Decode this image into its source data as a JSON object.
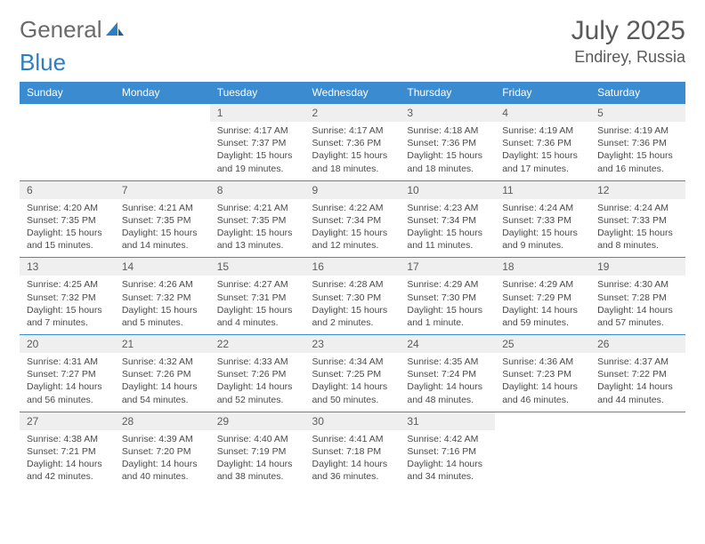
{
  "brand": {
    "part1": "General",
    "part2": "Blue"
  },
  "header": {
    "month_year": "July 2025",
    "location": "Endirey, Russia"
  },
  "colors": {
    "header_bg": "#3b8bd0",
    "header_text": "#ffffff",
    "daynum_bg": "#efefef",
    "border": "#3b8bd0",
    "text": "#4a4a4a",
    "brand_gray": "#6a6a6a",
    "brand_blue": "#2b7fc3"
  },
  "day_names": [
    "Sunday",
    "Monday",
    "Tuesday",
    "Wednesday",
    "Thursday",
    "Friday",
    "Saturday"
  ],
  "weeks": [
    {
      "nums": [
        "",
        "",
        "1",
        "2",
        "3",
        "4",
        "5"
      ],
      "cells": [
        null,
        null,
        {
          "sunrise": "Sunrise: 4:17 AM",
          "sunset": "Sunset: 7:37 PM",
          "day1": "Daylight: 15 hours",
          "day2": "and 19 minutes."
        },
        {
          "sunrise": "Sunrise: 4:17 AM",
          "sunset": "Sunset: 7:36 PM",
          "day1": "Daylight: 15 hours",
          "day2": "and 18 minutes."
        },
        {
          "sunrise": "Sunrise: 4:18 AM",
          "sunset": "Sunset: 7:36 PM",
          "day1": "Daylight: 15 hours",
          "day2": "and 18 minutes."
        },
        {
          "sunrise": "Sunrise: 4:19 AM",
          "sunset": "Sunset: 7:36 PM",
          "day1": "Daylight: 15 hours",
          "day2": "and 17 minutes."
        },
        {
          "sunrise": "Sunrise: 4:19 AM",
          "sunset": "Sunset: 7:36 PM",
          "day1": "Daylight: 15 hours",
          "day2": "and 16 minutes."
        }
      ]
    },
    {
      "nums": [
        "6",
        "7",
        "8",
        "9",
        "10",
        "11",
        "12"
      ],
      "cells": [
        {
          "sunrise": "Sunrise: 4:20 AM",
          "sunset": "Sunset: 7:35 PM",
          "day1": "Daylight: 15 hours",
          "day2": "and 15 minutes."
        },
        {
          "sunrise": "Sunrise: 4:21 AM",
          "sunset": "Sunset: 7:35 PM",
          "day1": "Daylight: 15 hours",
          "day2": "and 14 minutes."
        },
        {
          "sunrise": "Sunrise: 4:21 AM",
          "sunset": "Sunset: 7:35 PM",
          "day1": "Daylight: 15 hours",
          "day2": "and 13 minutes."
        },
        {
          "sunrise": "Sunrise: 4:22 AM",
          "sunset": "Sunset: 7:34 PM",
          "day1": "Daylight: 15 hours",
          "day2": "and 12 minutes."
        },
        {
          "sunrise": "Sunrise: 4:23 AM",
          "sunset": "Sunset: 7:34 PM",
          "day1": "Daylight: 15 hours",
          "day2": "and 11 minutes."
        },
        {
          "sunrise": "Sunrise: 4:24 AM",
          "sunset": "Sunset: 7:33 PM",
          "day1": "Daylight: 15 hours",
          "day2": "and 9 minutes."
        },
        {
          "sunrise": "Sunrise: 4:24 AM",
          "sunset": "Sunset: 7:33 PM",
          "day1": "Daylight: 15 hours",
          "day2": "and 8 minutes."
        }
      ]
    },
    {
      "nums": [
        "13",
        "14",
        "15",
        "16",
        "17",
        "18",
        "19"
      ],
      "cells": [
        {
          "sunrise": "Sunrise: 4:25 AM",
          "sunset": "Sunset: 7:32 PM",
          "day1": "Daylight: 15 hours",
          "day2": "and 7 minutes."
        },
        {
          "sunrise": "Sunrise: 4:26 AM",
          "sunset": "Sunset: 7:32 PM",
          "day1": "Daylight: 15 hours",
          "day2": "and 5 minutes."
        },
        {
          "sunrise": "Sunrise: 4:27 AM",
          "sunset": "Sunset: 7:31 PM",
          "day1": "Daylight: 15 hours",
          "day2": "and 4 minutes."
        },
        {
          "sunrise": "Sunrise: 4:28 AM",
          "sunset": "Sunset: 7:30 PM",
          "day1": "Daylight: 15 hours",
          "day2": "and 2 minutes."
        },
        {
          "sunrise": "Sunrise: 4:29 AM",
          "sunset": "Sunset: 7:30 PM",
          "day1": "Daylight: 15 hours",
          "day2": "and 1 minute."
        },
        {
          "sunrise": "Sunrise: 4:29 AM",
          "sunset": "Sunset: 7:29 PM",
          "day1": "Daylight: 14 hours",
          "day2": "and 59 minutes."
        },
        {
          "sunrise": "Sunrise: 4:30 AM",
          "sunset": "Sunset: 7:28 PM",
          "day1": "Daylight: 14 hours",
          "day2": "and 57 minutes."
        }
      ]
    },
    {
      "nums": [
        "20",
        "21",
        "22",
        "23",
        "24",
        "25",
        "26"
      ],
      "cells": [
        {
          "sunrise": "Sunrise: 4:31 AM",
          "sunset": "Sunset: 7:27 PM",
          "day1": "Daylight: 14 hours",
          "day2": "and 56 minutes."
        },
        {
          "sunrise": "Sunrise: 4:32 AM",
          "sunset": "Sunset: 7:26 PM",
          "day1": "Daylight: 14 hours",
          "day2": "and 54 minutes."
        },
        {
          "sunrise": "Sunrise: 4:33 AM",
          "sunset": "Sunset: 7:26 PM",
          "day1": "Daylight: 14 hours",
          "day2": "and 52 minutes."
        },
        {
          "sunrise": "Sunrise: 4:34 AM",
          "sunset": "Sunset: 7:25 PM",
          "day1": "Daylight: 14 hours",
          "day2": "and 50 minutes."
        },
        {
          "sunrise": "Sunrise: 4:35 AM",
          "sunset": "Sunset: 7:24 PM",
          "day1": "Daylight: 14 hours",
          "day2": "and 48 minutes."
        },
        {
          "sunrise": "Sunrise: 4:36 AM",
          "sunset": "Sunset: 7:23 PM",
          "day1": "Daylight: 14 hours",
          "day2": "and 46 minutes."
        },
        {
          "sunrise": "Sunrise: 4:37 AM",
          "sunset": "Sunset: 7:22 PM",
          "day1": "Daylight: 14 hours",
          "day2": "and 44 minutes."
        }
      ]
    },
    {
      "nums": [
        "27",
        "28",
        "29",
        "30",
        "31",
        "",
        ""
      ],
      "cells": [
        {
          "sunrise": "Sunrise: 4:38 AM",
          "sunset": "Sunset: 7:21 PM",
          "day1": "Daylight: 14 hours",
          "day2": "and 42 minutes."
        },
        {
          "sunrise": "Sunrise: 4:39 AM",
          "sunset": "Sunset: 7:20 PM",
          "day1": "Daylight: 14 hours",
          "day2": "and 40 minutes."
        },
        {
          "sunrise": "Sunrise: 4:40 AM",
          "sunset": "Sunset: 7:19 PM",
          "day1": "Daylight: 14 hours",
          "day2": "and 38 minutes."
        },
        {
          "sunrise": "Sunrise: 4:41 AM",
          "sunset": "Sunset: 7:18 PM",
          "day1": "Daylight: 14 hours",
          "day2": "and 36 minutes."
        },
        {
          "sunrise": "Sunrise: 4:42 AM",
          "sunset": "Sunset: 7:16 PM",
          "day1": "Daylight: 14 hours",
          "day2": "and 34 minutes."
        },
        null,
        null
      ]
    }
  ]
}
